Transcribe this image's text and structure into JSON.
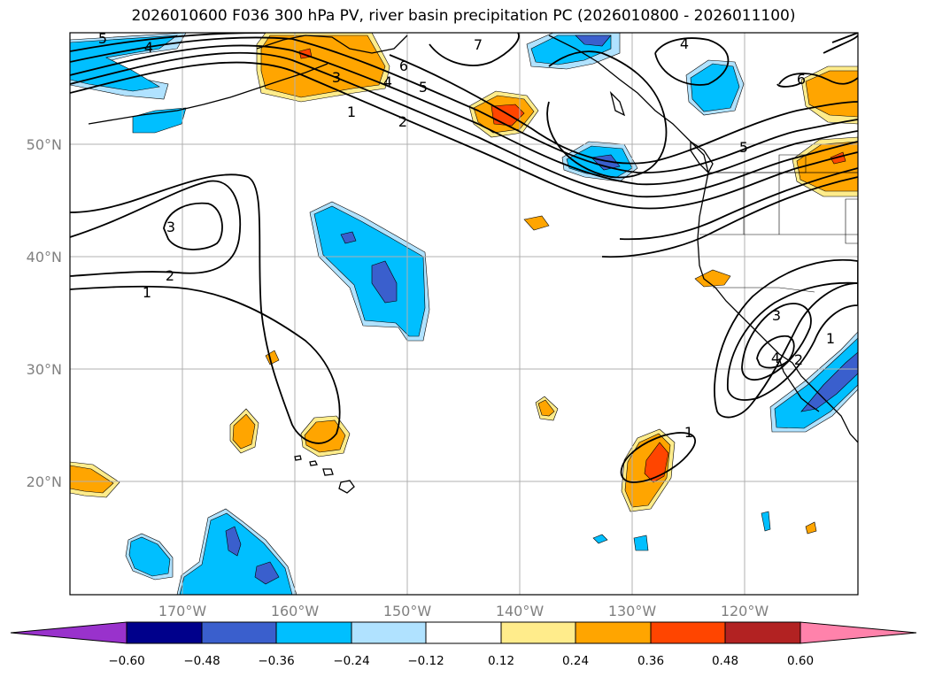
{
  "title": "2026010600 F036 300 hPa PV, river basin precipitation PC (2026010800 - 2026011100)",
  "lat_labels": [
    "50°N",
    "40°N",
    "30°N",
    "20°N"
  ],
  "lon_labels": [
    "170°W",
    "160°W",
    "150°W",
    "140°W",
    "130°W",
    "120°W"
  ],
  "colorbar": {
    "ticks": [
      "−0.60",
      "−0.48",
      "−0.36",
      "−0.24",
      "−0.12",
      "0.12",
      "0.24",
      "0.36",
      "0.48",
      "0.60"
    ],
    "colors": [
      "#9932cc",
      "#00008b",
      "#3a5fcd",
      "#00bfff",
      "#b0e2ff",
      "#ffffff",
      "#ffec8b",
      "#ffa500",
      "#ff4500",
      "#b22222",
      "#ff82ab"
    ]
  },
  "contour_labels": [
    "5",
    "4",
    "3",
    "6",
    "5",
    "4",
    "1",
    "2",
    "7",
    "4",
    "6",
    "5",
    "3",
    "2",
    "1",
    "3",
    "4",
    "2",
    "1",
    "1"
  ],
  "colors": {
    "contour": "#000000",
    "grid": "#b0b0b0",
    "coast": "#000000"
  }
}
